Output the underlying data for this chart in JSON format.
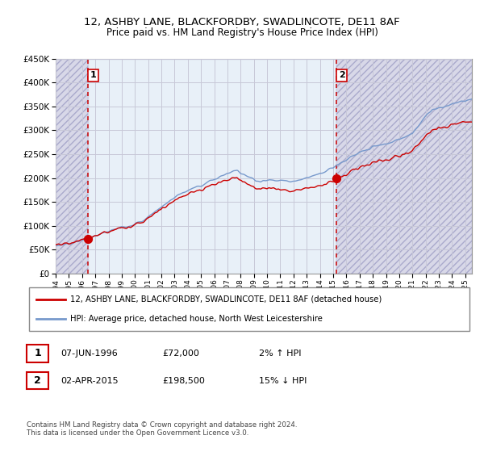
{
  "title": "12, ASHBY LANE, BLACKFORDBY, SWADLINCOTE, DE11 8AF",
  "subtitle": "Price paid vs. HM Land Registry's House Price Index (HPI)",
  "legend_line1": "12, ASHBY LANE, BLACKFORDBY, SWADLINCOTE, DE11 8AF (detached house)",
  "legend_line2": "HPI: Average price, detached house, North West Leicestershire",
  "annotation1_date": "07-JUN-1996",
  "annotation1_price": "£72,000",
  "annotation1_hpi": "2% ↑ HPI",
  "annotation2_date": "02-APR-2015",
  "annotation2_price": "£198,500",
  "annotation2_hpi": "15% ↓ HPI",
  "footer": "Contains HM Land Registry data © Crown copyright and database right 2024.\nThis data is licensed under the Open Government Licence v3.0.",
  "sale1_year": 1996.44,
  "sale1_value": 72000,
  "sale2_year": 2015.25,
  "sale2_value": 198500,
  "hpi_color": "#7799cc",
  "sale_color": "#cc0000",
  "ylim_min": 0,
  "ylim_max": 450000,
  "xlim_min": 1994,
  "xlim_max": 2025.5,
  "hatch_color": "#d8d8e8",
  "grid_color": "#c8c8d8"
}
